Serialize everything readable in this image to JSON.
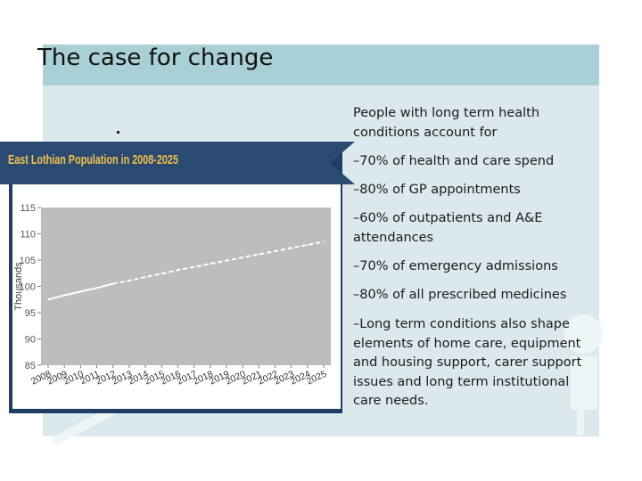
{
  "slide": {
    "title": "The case for change",
    "stray_mark": "."
  },
  "text_panel": {
    "intro": "People with long term health conditions account for",
    "bullets": [
      "–70% of health and care spend",
      "–80% of GP appointments",
      "–60% of outpatients and A&E attendances",
      "–70% of emergency admissions",
      "–80% of all prescribed medicines",
      "–Long term conditions also shape elements of home care, equipment and housing support, carer support issues and long term institutional care needs."
    ]
  },
  "colors": {
    "title_band": "#a9cfd7",
    "slide_bg": "#dbe9ec",
    "chart_frame": "#1f3e63",
    "chart_title": "#f2c14e",
    "plot_bg": "#bdbdbd",
    "line": "#ffffff"
  },
  "chart_data": {
    "type": "line",
    "title": "East Lothian Population in 2008-2025",
    "ylabel": "Thousands",
    "xlabel": "",
    "ylim": [
      85,
      115
    ],
    "yticks": [
      "115",
      "110",
      "105",
      "100",
      "95",
      "90",
      "85"
    ],
    "ytick_values": [
      115,
      110,
      105,
      100,
      95,
      90,
      85
    ],
    "categories": [
      "2008",
      "2009",
      "2010",
      "2011",
      "2012",
      "2013",
      "2014",
      "2015",
      "2016",
      "2017",
      "2018",
      "2019",
      "2020",
      "2021",
      "2022",
      "2023",
      "2024",
      "2025"
    ],
    "series": [
      {
        "values": [
          97.5,
          98.3,
          99.0,
          99.7,
          100.5,
          101.1,
          101.8,
          102.4,
          103.1,
          103.7,
          104.3,
          104.9,
          105.5,
          106.1,
          106.7,
          107.3,
          107.9,
          108.5
        ],
        "solid_through": "2012",
        "dashed_from": "2012"
      }
    ],
    "grid": false,
    "legend": "none"
  }
}
